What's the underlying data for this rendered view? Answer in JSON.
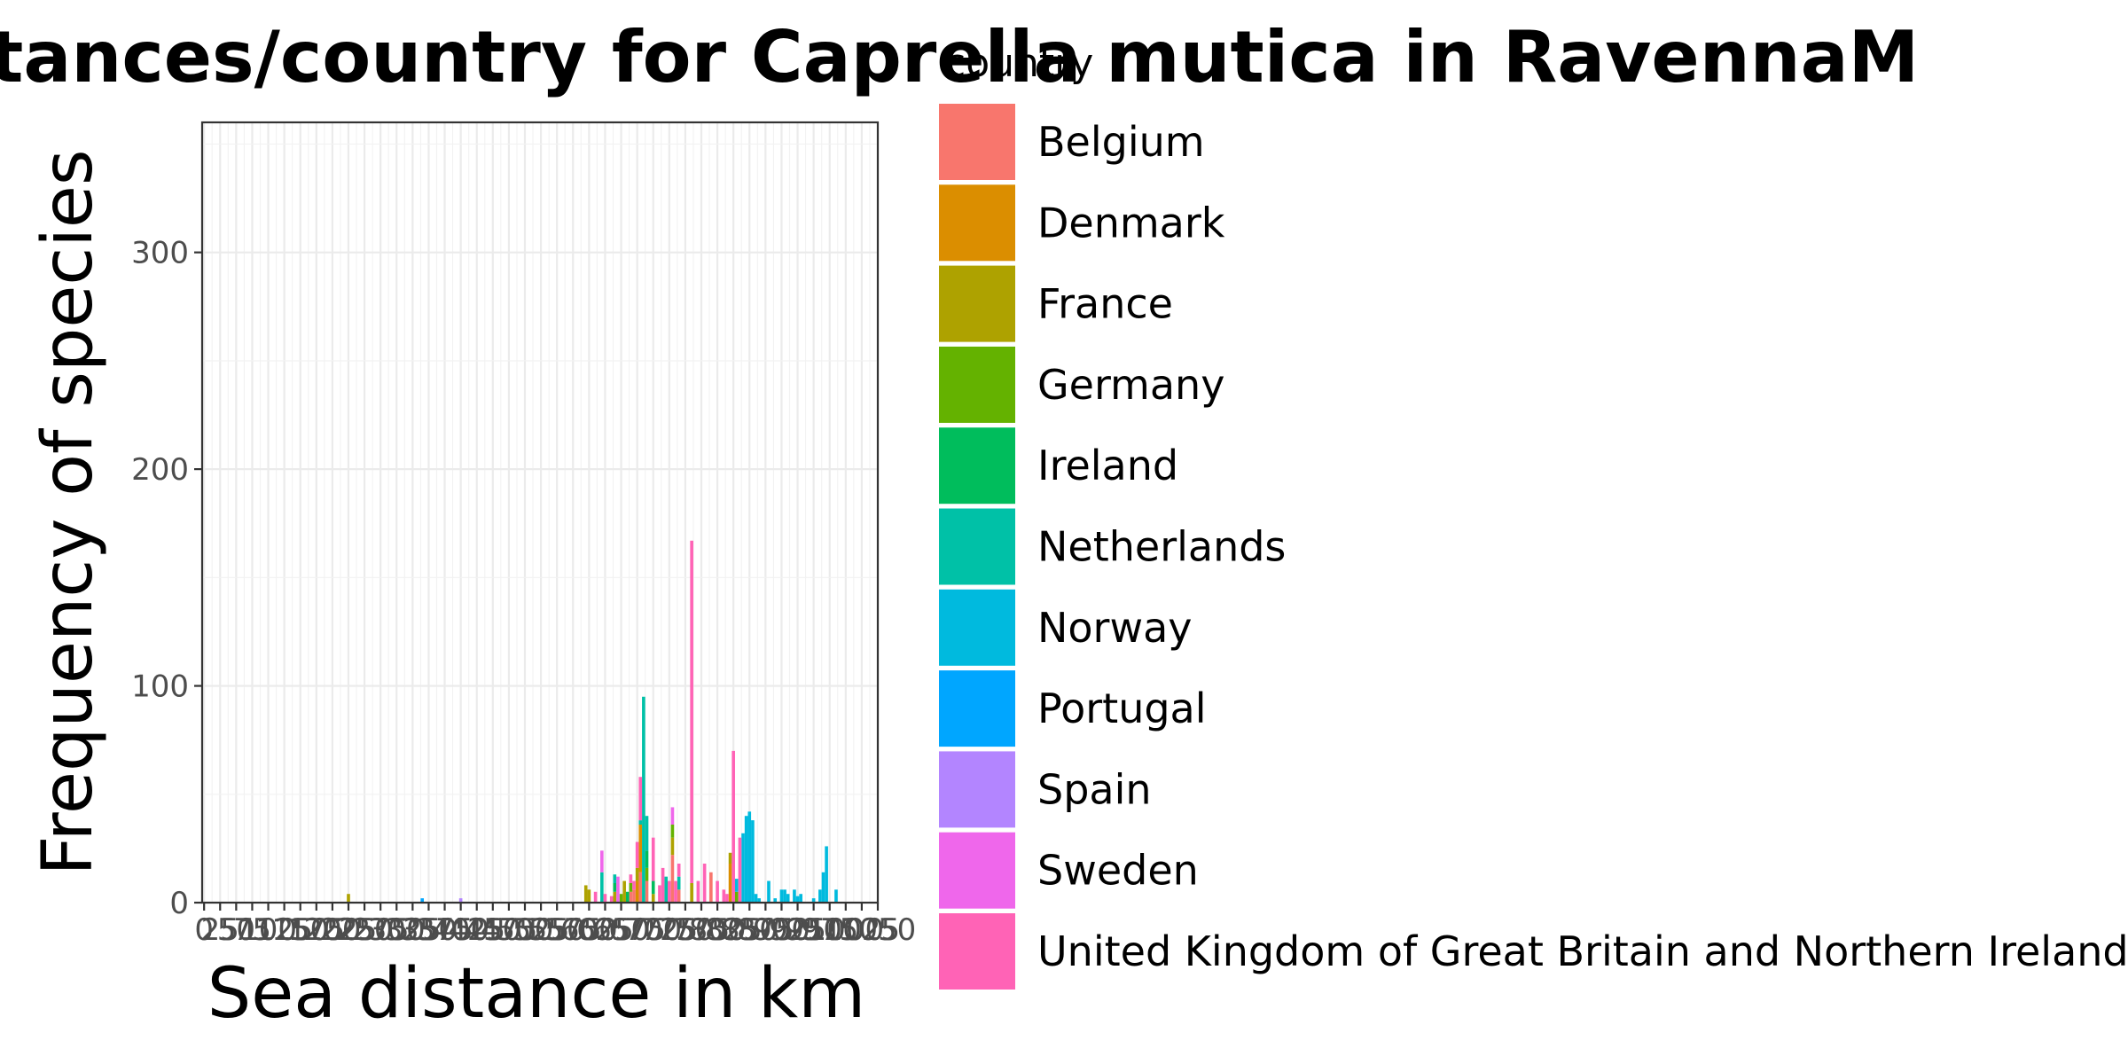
{
  "chart_data": {
    "type": "bar",
    "stacked": true,
    "title": "distances/country for Caprella mutica in RavennaM",
    "xlabel": "Sea distance in km",
    "ylabel": "Frequency of species",
    "xlim": [
      -3,
      1050
    ],
    "ylim": [
      0,
      360
    ],
    "x_ticks": [
      0,
      25,
      50,
      75,
      100,
      125,
      150,
      175,
      200,
      225,
      250,
      275,
      300,
      325,
      350,
      375,
      400,
      425,
      450,
      475,
      500,
      525,
      550,
      575,
      600,
      625,
      650,
      675,
      700,
      725,
      750,
      775,
      800,
      825,
      850,
      875,
      900,
      925,
      950,
      975,
      1000,
      1025,
      1050
    ],
    "y_ticks": [
      0,
      100,
      200,
      300
    ],
    "grid": true,
    "legend_title": "country",
    "legend_position": "right",
    "series": [
      {
        "name": "Belgium",
        "color": "#F8766D",
        "points": [
          [
            665,
            5
          ],
          [
            670,
            6
          ],
          [
            680,
            14
          ],
          [
            690,
            10
          ],
          [
            730,
            22
          ],
          [
            740,
            6
          ],
          [
            790,
            14
          ]
        ]
      },
      {
        "name": "Denmark",
        "color": "#DB8E00",
        "points": [
          [
            675,
            10
          ],
          [
            680,
            22
          ],
          [
            820,
            18
          ]
        ]
      },
      {
        "name": "France",
        "color": "#AEA200",
        "points": [
          [
            225,
            4
          ],
          [
            595,
            8
          ],
          [
            600,
            6
          ],
          [
            640,
            5
          ],
          [
            655,
            10
          ],
          [
            675,
            6
          ],
          [
            700,
            4
          ],
          [
            730,
            8
          ],
          [
            760,
            9
          ],
          [
            820,
            5
          ]
        ]
      },
      {
        "name": "Germany",
        "color": "#64B200",
        "points": [
          [
            650,
            4
          ],
          [
            665,
            4
          ],
          [
            690,
            6
          ],
          [
            730,
            6
          ],
          [
            830,
            5
          ]
        ]
      },
      {
        "name": "Ireland",
        "color": "#00BD5C",
        "points": [
          [
            640,
            4
          ],
          [
            660,
            5
          ],
          [
            690,
            8
          ],
          [
            700,
            6
          ]
        ]
      },
      {
        "name": "Netherlands",
        "color": "#00C1A7",
        "points": [
          [
            620,
            14
          ],
          [
            640,
            4
          ],
          [
            680,
            2
          ],
          [
            685,
            95
          ],
          [
            690,
            16
          ],
          [
            720,
            12
          ],
          [
            740,
            6
          ]
        ]
      },
      {
        "name": "Norway",
        "color": "#00BADE",
        "points": [
          [
            830,
            6
          ],
          [
            840,
            32
          ],
          [
            845,
            40
          ],
          [
            850,
            42
          ],
          [
            855,
            38
          ],
          [
            860,
            4
          ],
          [
            865,
            2
          ],
          [
            880,
            10
          ],
          [
            890,
            2
          ],
          [
            900,
            6
          ],
          [
            905,
            6
          ],
          [
            910,
            4
          ],
          [
            920,
            6
          ],
          [
            925,
            3
          ],
          [
            930,
            4
          ],
          [
            950,
            2
          ],
          [
            960,
            6
          ],
          [
            965,
            14
          ],
          [
            970,
            26
          ],
          [
            985,
            6
          ]
        ]
      },
      {
        "name": "Portugal",
        "color": "#00A6FF",
        "points": [
          [
            340,
            2
          ]
        ]
      },
      {
        "name": "Spain",
        "color": "#B385FF",
        "points": [
          [
            400,
            2
          ]
        ]
      },
      {
        "name": "Sweden",
        "color": "#EF67EB",
        "points": [
          [
            620,
            10
          ],
          [
            645,
            12
          ],
          [
            730,
            8
          ]
        ]
      },
      {
        "name": "United Kingdom of Great Britain and Northern Ireland",
        "color": "#FF63B6",
        "points": [
          [
            610,
            5
          ],
          [
            625,
            4
          ],
          [
            635,
            3
          ],
          [
            665,
            4
          ],
          [
            670,
            4
          ],
          [
            675,
            12
          ],
          [
            680,
            20
          ],
          [
            700,
            20
          ],
          [
            710,
            8
          ],
          [
            715,
            16
          ],
          [
            725,
            10
          ],
          [
            735,
            10
          ],
          [
            740,
            6
          ],
          [
            760,
            158
          ],
          [
            770,
            10
          ],
          [
            780,
            18
          ],
          [
            800,
            10
          ],
          [
            810,
            6
          ],
          [
            815,
            4
          ],
          [
            825,
            70
          ],
          [
            835,
            30
          ]
        ]
      }
    ]
  }
}
